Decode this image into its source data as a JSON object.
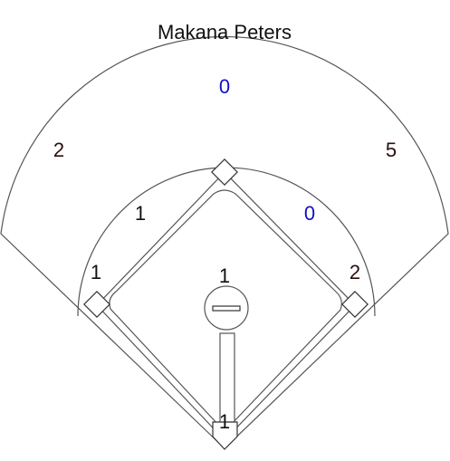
{
  "player": {
    "name": "Makana Peters"
  },
  "colors": {
    "line": "#555555",
    "blue": "#1010c8",
    "dark": "#2b0d0d",
    "black": "#111111"
  },
  "zones": {
    "outfield_center": "0",
    "outfield_left": "2",
    "outfield_right": "5",
    "infield_left": "1",
    "infield_right": "0",
    "third_base_area": "1",
    "first_base_area": "2",
    "pitcher_area": "1",
    "catcher_area": "1"
  }
}
